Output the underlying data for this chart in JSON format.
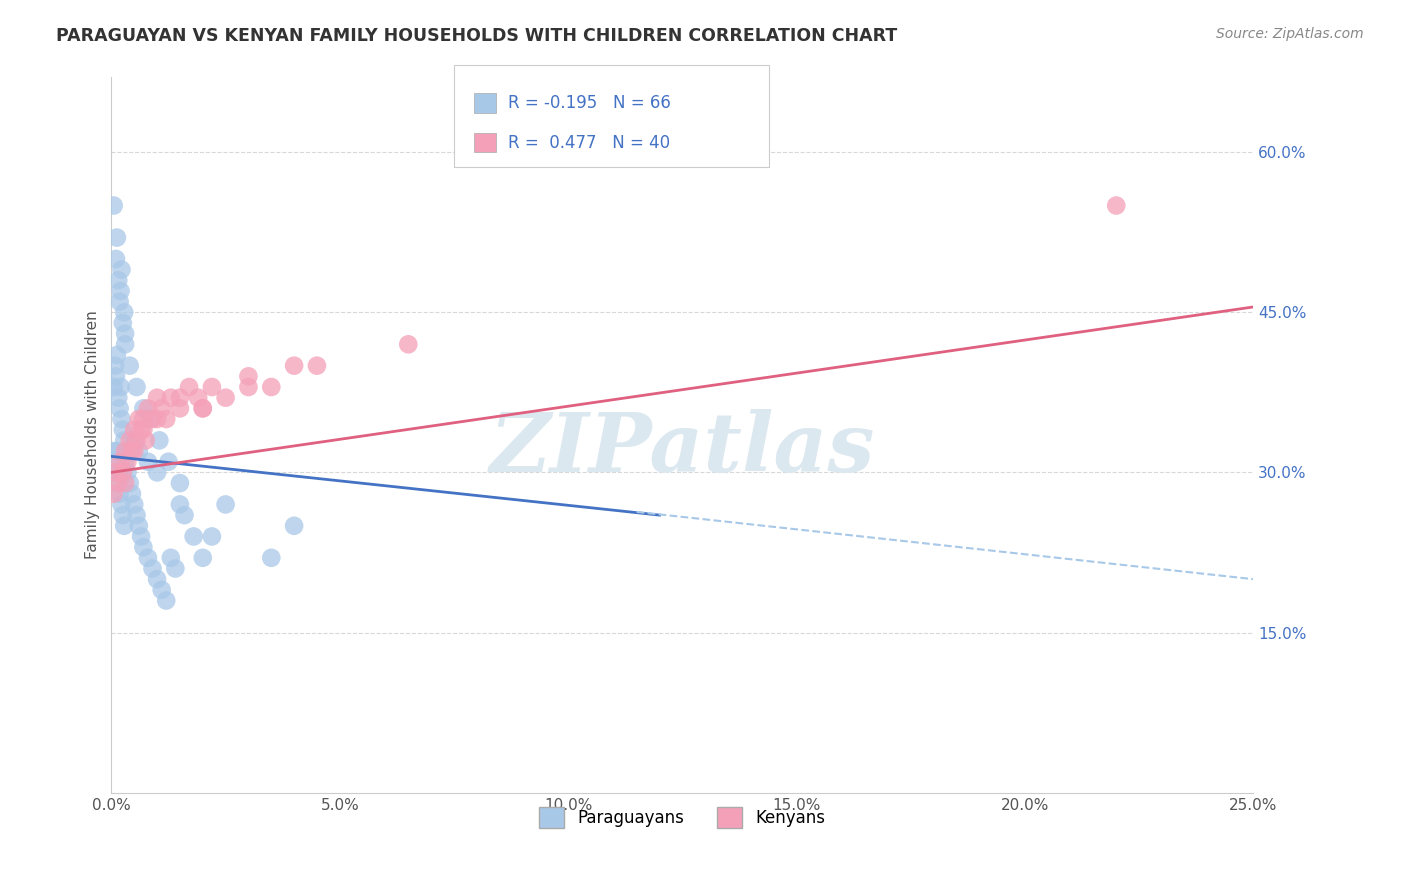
{
  "title": "PARAGUAYAN VS KENYAN FAMILY HOUSEHOLDS WITH CHILDREN CORRELATION CHART",
  "source_text": "Source: ZipAtlas.com",
  "ylabel": "Family Households with Children",
  "xlim": [
    0.0,
    25.0
  ],
  "ylim": [
    0.0,
    67.0
  ],
  "xticks": [
    0.0,
    5.0,
    10.0,
    15.0,
    20.0,
    25.0
  ],
  "yticks_right": [
    15.0,
    30.0,
    45.0,
    60.0
  ],
  "paraguayan_color": "#a8c8e8",
  "kenyan_color": "#f4a0b8",
  "paraguayan_line_color": "#4472c4",
  "kenyan_line_color": "#e06080",
  "dashed_line_color": "#a8c8e8",
  "legend_R1": "R = -0.195",
  "legend_N1": "N = 66",
  "legend_R2": "R =  0.477",
  "legend_N2": "N = 40",
  "watermark": "ZIPatlas",
  "background_color": "#ffffff",
  "grid_color": "#d8d8d8",
  "par_x": [
    0.05,
    0.1,
    0.12,
    0.15,
    0.18,
    0.2,
    0.22,
    0.25,
    0.28,
    0.3,
    0.05,
    0.08,
    0.1,
    0.12,
    0.15,
    0.18,
    0.2,
    0.22,
    0.25,
    0.28,
    0.05,
    0.08,
    0.1,
    0.12,
    0.15,
    0.18,
    0.2,
    0.22,
    0.25,
    0.28,
    0.3,
    0.35,
    0.4,
    0.45,
    0.5,
    0.55,
    0.6,
    0.65,
    0.7,
    0.8,
    0.9,
    1.0,
    1.1,
    1.2,
    1.3,
    1.4,
    1.5,
    1.6,
    1.8,
    2.0,
    0.5,
    0.6,
    0.8,
    1.0,
    2.5,
    4.0,
    0.3,
    0.4,
    0.55,
    0.7,
    0.85,
    1.05,
    1.25,
    1.5,
    2.2,
    3.5
  ],
  "par_y": [
    55.0,
    50.0,
    52.0,
    48.0,
    46.0,
    47.0,
    49.0,
    44.0,
    45.0,
    42.0,
    38.0,
    40.0,
    39.0,
    41.0,
    37.0,
    36.0,
    38.0,
    35.0,
    34.0,
    33.0,
    32.0,
    31.0,
    30.0,
    32.0,
    29.0,
    28.0,
    30.0,
    27.0,
    26.0,
    25.0,
    31.0,
    30.0,
    29.0,
    28.0,
    27.0,
    26.0,
    25.0,
    24.0,
    23.0,
    22.0,
    21.0,
    20.0,
    19.0,
    18.0,
    22.0,
    21.0,
    27.0,
    26.0,
    24.0,
    22.0,
    33.0,
    32.0,
    31.0,
    30.0,
    27.0,
    25.0,
    43.0,
    40.0,
    38.0,
    36.0,
    35.0,
    33.0,
    31.0,
    29.0,
    24.0,
    22.0
  ],
  "ken_x": [
    0.05,
    0.1,
    0.15,
    0.2,
    0.25,
    0.3,
    0.35,
    0.4,
    0.45,
    0.5,
    0.55,
    0.6,
    0.65,
    0.7,
    0.75,
    0.8,
    0.9,
    1.0,
    1.1,
    1.2,
    1.3,
    1.5,
    1.7,
    1.9,
    2.0,
    2.2,
    2.5,
    3.0,
    3.5,
    4.0,
    0.3,
    0.5,
    0.7,
    1.0,
    1.5,
    2.0,
    3.0,
    4.5,
    6.5,
    22.0
  ],
  "ken_y": [
    28.0,
    30.0,
    29.0,
    31.0,
    30.0,
    32.0,
    31.0,
    33.0,
    32.0,
    34.0,
    33.0,
    35.0,
    34.0,
    35.0,
    33.0,
    36.0,
    35.0,
    37.0,
    36.0,
    35.0,
    37.0,
    36.0,
    38.0,
    37.0,
    36.0,
    38.0,
    37.0,
    39.0,
    38.0,
    40.0,
    29.0,
    32.0,
    34.0,
    35.0,
    37.0,
    36.0,
    38.0,
    40.0,
    42.0,
    55.0
  ],
  "par_line_x0": 0.0,
  "par_line_y0": 31.5,
  "par_line_x1": 12.0,
  "par_line_y1": 26.0,
  "par_dash_x0": 11.5,
  "par_dash_y0": 26.3,
  "par_dash_x1": 25.0,
  "par_dash_y1": 20.0,
  "ken_line_x0": 0.0,
  "ken_line_y0": 30.0,
  "ken_line_x1": 25.0,
  "ken_line_y1": 45.5
}
